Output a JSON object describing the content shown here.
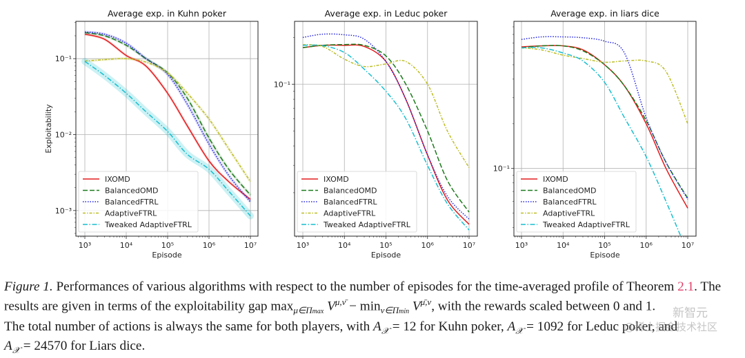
{
  "chart_data": [
    {
      "type": "line",
      "title": "Average exp. in Kuhn poker",
      "xlabel": "Episode",
      "ylabel": "Exploitability",
      "xscale": "log",
      "yscale": "log",
      "xlim": [
        700,
        14000000
      ],
      "ylim": [
        0.00046,
        0.31
      ],
      "x_ticks": [
        {
          "value": 1000,
          "label": "10^3"
        },
        {
          "value": 10000,
          "label": "10^4"
        },
        {
          "value": 100000,
          "label": "10^5"
        },
        {
          "value": 1000000,
          "label": "10^6"
        },
        {
          "value": 10000000,
          "label": "10^7"
        }
      ],
      "y_ticks": [
        {
          "value": 0.1,
          "label": "10^-1"
        },
        {
          "value": 0.01,
          "label": "10^-2"
        },
        {
          "value": 0.001,
          "label": "10^-3"
        }
      ],
      "grid": true,
      "legend_position": "lower-left",
      "x": [
        1000,
        3000,
        10000,
        30000,
        100000,
        300000,
        1000000,
        3000000,
        10000000
      ],
      "series": [
        {
          "name": "IXOMD",
          "color": "#e41a1c",
          "style": "solid",
          "values": [
            0.21,
            0.18,
            0.11,
            0.08,
            0.035,
            0.013,
            0.0045,
            0.0024,
            0.0014
          ]
        },
        {
          "name": "BalancedOMD",
          "color": "#1a7a1a",
          "style": "dashed",
          "values": [
            0.22,
            0.2,
            0.15,
            0.1,
            0.065,
            0.03,
            0.009,
            0.0035,
            0.0016
          ]
        },
        {
          "name": "BalancedFTRL",
          "color": "#2222dd",
          "style": "dotted",
          "values": [
            0.225,
            0.21,
            0.16,
            0.1,
            0.062,
            0.025,
            0.0075,
            0.0029,
            0.0013
          ]
        },
        {
          "name": "AdaptiveFTRL",
          "color": "#bcbd22",
          "style": "dashdot-fine",
          "values": [
            0.093,
            0.097,
            0.1,
            0.09,
            0.065,
            0.035,
            0.016,
            0.0065,
            0.0024
          ]
        },
        {
          "name": "Tweaked AdaptiveFTRL",
          "color": "#17becf",
          "style": "dashdot",
          "values": [
            0.092,
            0.06,
            0.035,
            0.02,
            0.011,
            0.0055,
            0.0035,
            0.0018,
            0.00085
          ],
          "band": true
        }
      ]
    },
    {
      "type": "line",
      "title": "Average exp. in Leduc poker",
      "xlabel": "Episode",
      "ylabel": "",
      "xscale": "log",
      "yscale": "log",
      "xlim": [
        700,
        14000000
      ],
      "ylim": [
        0.0105,
        0.254
      ],
      "x_ticks": [
        {
          "value": 1000,
          "label": "10^3"
        },
        {
          "value": 10000,
          "label": "10^4"
        },
        {
          "value": 100000,
          "label": "10^5"
        },
        {
          "value": 1000000,
          "label": "10^6"
        },
        {
          "value": 10000000,
          "label": "10^7"
        }
      ],
      "y_ticks": [
        {
          "value": 0.1,
          "label": "10^-1"
        }
      ],
      "grid": true,
      "legend_position": "lower-left",
      "x": [
        1000,
        3000,
        10000,
        30000,
        100000,
        300000,
        1000000,
        3000000,
        10000000
      ],
      "series": [
        {
          "name": "IXOMD",
          "color": "#e41a1c",
          "style": "solid",
          "values": [
            0.172,
            0.178,
            0.178,
            0.175,
            0.14,
            0.08,
            0.035,
            0.018,
            0.0125
          ]
        },
        {
          "name": "BalancedOMD",
          "color": "#1a7a1a",
          "style": "dashed",
          "values": [
            0.172,
            0.178,
            0.18,
            0.178,
            0.152,
            0.1,
            0.05,
            0.024,
            0.015
          ]
        },
        {
          "name": "BalancedFTRL",
          "color": "#2222dd",
          "style": "dotted",
          "values": [
            0.2,
            0.21,
            0.208,
            0.195,
            0.14,
            0.08,
            0.035,
            0.019,
            0.0135
          ]
        },
        {
          "name": "AdaptiveFTRL",
          "color": "#bcbd22",
          "style": "dashdot-fine",
          "values": [
            0.18,
            0.175,
            0.145,
            0.13,
            0.135,
            0.14,
            0.1,
            0.05,
            0.029
          ]
        },
        {
          "name": "Tweaked AdaptiveFTRL",
          "color": "#17becf",
          "style": "dashdot",
          "values": [
            0.178,
            0.177,
            0.16,
            0.125,
            0.09,
            0.06,
            0.03,
            0.017,
            0.0115
          ]
        }
      ]
    },
    {
      "type": "line",
      "title": "Average exp. in liars dice",
      "xlabel": "Episode",
      "ylabel": "",
      "xscale": "log",
      "yscale": "log",
      "xlim": [
        700,
        14000000
      ],
      "ylim": [
        0.035,
        0.98
      ],
      "x_ticks": [
        {
          "value": 1000,
          "label": "10^3"
        },
        {
          "value": 10000,
          "label": "10^4"
        },
        {
          "value": 100000,
          "label": "10^5"
        },
        {
          "value": 1000000,
          "label": "10^6"
        },
        {
          "value": 10000000,
          "label": "10^7"
        }
      ],
      "y_ticks": [
        {
          "value": 0.1,
          "label": "10^-1"
        }
      ],
      "grid": true,
      "legend_position": "lower-left",
      "x": [
        1000,
        3000,
        10000,
        30000,
        100000,
        300000,
        1000000,
        3000000,
        10000000
      ],
      "series": [
        {
          "name": "IXOMD",
          "color": "#e41a1c",
          "style": "solid",
          "values": [
            0.66,
            0.67,
            0.67,
            0.63,
            0.5,
            0.36,
            0.2,
            0.1,
            0.054
          ]
        },
        {
          "name": "BalancedOMD",
          "color": "#1a7a1a",
          "style": "dashed",
          "values": [
            0.65,
            0.67,
            0.67,
            0.62,
            0.5,
            0.36,
            0.21,
            0.11,
            0.063
          ]
        },
        {
          "name": "BalancedFTRL",
          "color": "#2222dd",
          "style": "dotted",
          "values": [
            0.74,
            0.77,
            0.77,
            0.76,
            0.72,
            0.6,
            0.22,
            0.11,
            0.062
          ]
        },
        {
          "name": "AdaptiveFTRL",
          "color": "#bcbd22",
          "style": "dashdot-fine",
          "values": [
            0.65,
            0.63,
            0.58,
            0.55,
            0.52,
            0.53,
            0.53,
            0.45,
            0.2
          ]
        },
        {
          "name": "Tweaked AdaptiveFTRL",
          "color": "#17becf",
          "style": "dashdot",
          "values": [
            0.65,
            0.65,
            0.6,
            0.53,
            0.38,
            0.22,
            0.12,
            0.06,
            0.027
          ]
        }
      ]
    }
  ],
  "caption": {
    "lines": [
      [
        {
          "t": "Figure 1.",
          "k": "fig"
        },
        {
          "t": " Performances of various algorithms with respect to the number of episodes for the time-averaged profile of Theorem ",
          "k": ""
        },
        {
          "t": "2.1",
          "k": "ref"
        },
        {
          "t": ". The",
          "k": ""
        }
      ],
      [
        {
          "t": "results are given in terms of the exploitability gap max",
          "k": ""
        },
        {
          "t": "μ∈Π",
          "k": "sub"
        },
        {
          "t": "max",
          "k": "subsub"
        },
        {
          "t": " V",
          "k": "math"
        },
        {
          "t": "μ,ν̄",
          "k": "sup"
        },
        {
          "t": " − min",
          "k": ""
        },
        {
          "t": "ν∈Π",
          "k": "sub"
        },
        {
          "t": "min",
          "k": "subsub"
        },
        {
          "t": " V",
          "k": "math"
        },
        {
          "t": "μ̄,ν",
          "k": "sup"
        },
        {
          "t": ", with the rewards scaled between 0 and 1.",
          "k": ""
        }
      ],
      [
        {
          "t": "The total number of actions is always the same for both players, with ",
          "k": ""
        },
        {
          "t": "A",
          "k": "math"
        },
        {
          "t": "𝒳",
          "k": "sub"
        },
        {
          "t": " = 12 for Kuhn poker, ",
          "k": ""
        },
        {
          "t": "A",
          "k": "math"
        },
        {
          "t": "𝒳",
          "k": "sub"
        },
        {
          "t": " = 1092 for Leduc poker, and",
          "k": ""
        }
      ],
      [
        {
          "t": "A",
          "k": "math"
        },
        {
          "t": "𝒳",
          "k": "sub"
        },
        {
          "t": " = 24570 for Liars dice.",
          "k": ""
        }
      ]
    ]
  },
  "watermark": {
    "line1": "新智元",
    "line2": "@稀土掘金技术社区"
  }
}
